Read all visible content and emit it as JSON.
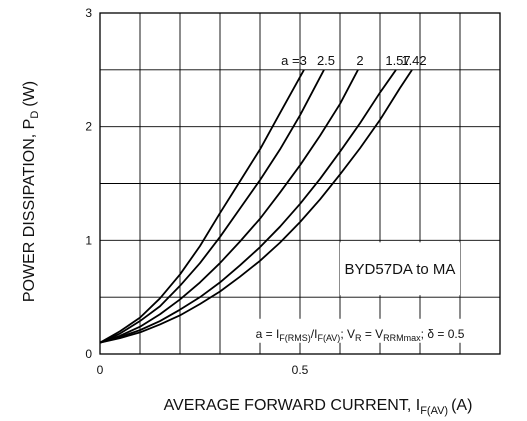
{
  "chart_data": {
    "type": "line",
    "xlabel": "AVERAGE FORWARD CURRENT, I",
    "xlabel_sub": "F(AV)",
    "xlabel_unit": "(A)",
    "ylabel": "POWER DISSIPATION, P",
    "ylabel_sub": "D",
    "ylabel_unit": "(W)",
    "xlim": [
      0,
      1.0
    ],
    "ylim": [
      0,
      3
    ],
    "grid": true,
    "x_ticks": [
      {
        "value": 0,
        "label": "0"
      },
      {
        "value": 0.5,
        "label": "0.5"
      }
    ],
    "y_ticks": [
      {
        "value": 0,
        "label": "0"
      },
      {
        "value": 1,
        "label": "1"
      },
      {
        "value": 2,
        "label": "2"
      },
      {
        "value": 3,
        "label": "3"
      }
    ],
    "annotation": "BYD57DA to MA",
    "formula": {
      "a": "a = I",
      "irms_sub": "F(RMS)",
      "slash": "/I",
      "iav_sub": "F(AV)",
      "vr": "; V",
      "vr_sub": "R",
      "eq": " = V",
      "vrrm_sub": "RRMmax",
      "delta": "; δ = 0.5"
    },
    "series": [
      {
        "name": "a =3",
        "x": [
          0,
          0.05,
          0.1,
          0.15,
          0.2,
          0.25,
          0.3,
          0.35,
          0.4,
          0.45,
          0.51
        ],
        "y": [
          0.1,
          0.2,
          0.32,
          0.49,
          0.7,
          0.95,
          1.24,
          1.52,
          1.8,
          2.12,
          2.5
        ]
      },
      {
        "name": "2.5",
        "x": [
          0,
          0.05,
          0.1,
          0.15,
          0.2,
          0.25,
          0.3,
          0.35,
          0.4,
          0.45,
          0.5,
          0.56
        ],
        "y": [
          0.1,
          0.18,
          0.29,
          0.42,
          0.6,
          0.8,
          1.03,
          1.28,
          1.53,
          1.8,
          2.1,
          2.5
        ]
      },
      {
        "name": "2",
        "x": [
          0,
          0.05,
          0.1,
          0.15,
          0.2,
          0.25,
          0.3,
          0.35,
          0.4,
          0.45,
          0.5,
          0.55,
          0.6,
          0.645
        ],
        "y": [
          0.1,
          0.16,
          0.24,
          0.35,
          0.48,
          0.63,
          0.8,
          0.99,
          1.19,
          1.42,
          1.66,
          1.92,
          2.2,
          2.5
        ]
      },
      {
        "name": "1.57",
        "x": [
          0,
          0.05,
          0.1,
          0.15,
          0.2,
          0.25,
          0.3,
          0.35,
          0.4,
          0.45,
          0.5,
          0.55,
          0.6,
          0.65,
          0.7,
          0.74
        ],
        "y": [
          0.1,
          0.15,
          0.21,
          0.29,
          0.39,
          0.5,
          0.63,
          0.78,
          0.94,
          1.12,
          1.32,
          1.54,
          1.78,
          2.03,
          2.3,
          2.5
        ]
      },
      {
        "name": "1.42",
        "x": [
          0,
          0.05,
          0.1,
          0.15,
          0.2,
          0.25,
          0.3,
          0.35,
          0.4,
          0.45,
          0.5,
          0.55,
          0.6,
          0.65,
          0.7,
          0.75,
          0.78
        ],
        "y": [
          0.1,
          0.14,
          0.19,
          0.26,
          0.34,
          0.44,
          0.55,
          0.68,
          0.82,
          0.98,
          1.16,
          1.36,
          1.58,
          1.81,
          2.06,
          2.34,
          2.5
        ]
      }
    ]
  }
}
